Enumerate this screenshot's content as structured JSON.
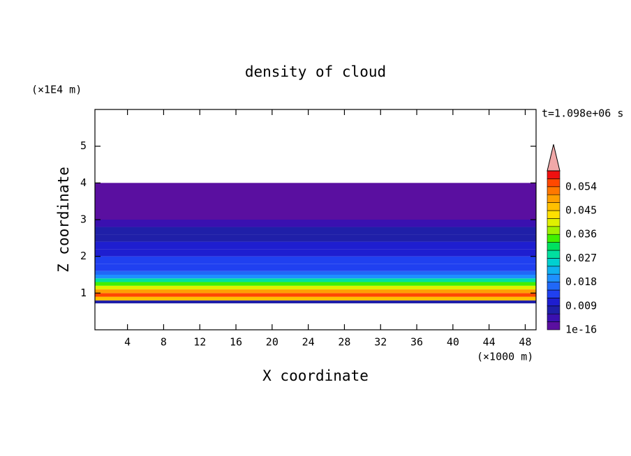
{
  "chart_data": {
    "type": "contourf",
    "title": "density of cloud",
    "y_unit": "(×1E4 m)",
    "x_unit": "(×1000 m)",
    "time_label": "t=1.098e+06 s",
    "xlabel": "X coordinate",
    "ylabel": "Z coordinate",
    "xlim": [
      0.4,
      49.2
    ],
    "ylim": [
      0,
      6
    ],
    "xticks": [
      4,
      8,
      12,
      16,
      20,
      24,
      28,
      32,
      36,
      40,
      44,
      48
    ],
    "yticks": [
      1,
      2,
      3,
      4,
      5
    ],
    "z_edges": [
      0.72,
      0.8,
      0.9,
      1.0,
      1.1,
      1.2,
      1.3,
      1.4,
      1.5,
      1.6,
      1.8,
      2.0,
      2.2,
      2.4,
      2.6,
      2.8,
      3.0,
      4.0
    ],
    "values": [
      0.006,
      0.045,
      0.054,
      0.05,
      0.04,
      0.033,
      0.027,
      0.02,
      0.017,
      0.014,
      0.012,
      0.011,
      0.01,
      0.008,
      0.006,
      0.005,
      0.002
    ],
    "levels": [
      1e-16,
      0.003,
      0.006,
      0.009,
      0.012,
      0.015,
      0.018,
      0.021,
      0.024,
      0.027,
      0.03,
      0.033,
      0.036,
      0.039,
      0.042,
      0.045,
      0.048,
      0.051,
      0.054,
      0.057,
      0.06
    ],
    "colors": [
      "#5a0fa0",
      "#3a10b0",
      "#1f1fa8",
      "#1e1ed0",
      "#2040f0",
      "#2068f8",
      "#1e90ff",
      "#10b0f0",
      "#00d0d0",
      "#00e0a0",
      "#00e060",
      "#40f000",
      "#a0f000",
      "#e0f000",
      "#ffe000",
      "#ffc000",
      "#ffa000",
      "#ff7800",
      "#ff4800",
      "#f01010"
    ],
    "over_color": "#f0a8a8",
    "colorbar_ticks": [
      1e-16,
      0.009,
      0.018,
      0.027,
      0.036,
      0.045,
      0.054
    ]
  }
}
